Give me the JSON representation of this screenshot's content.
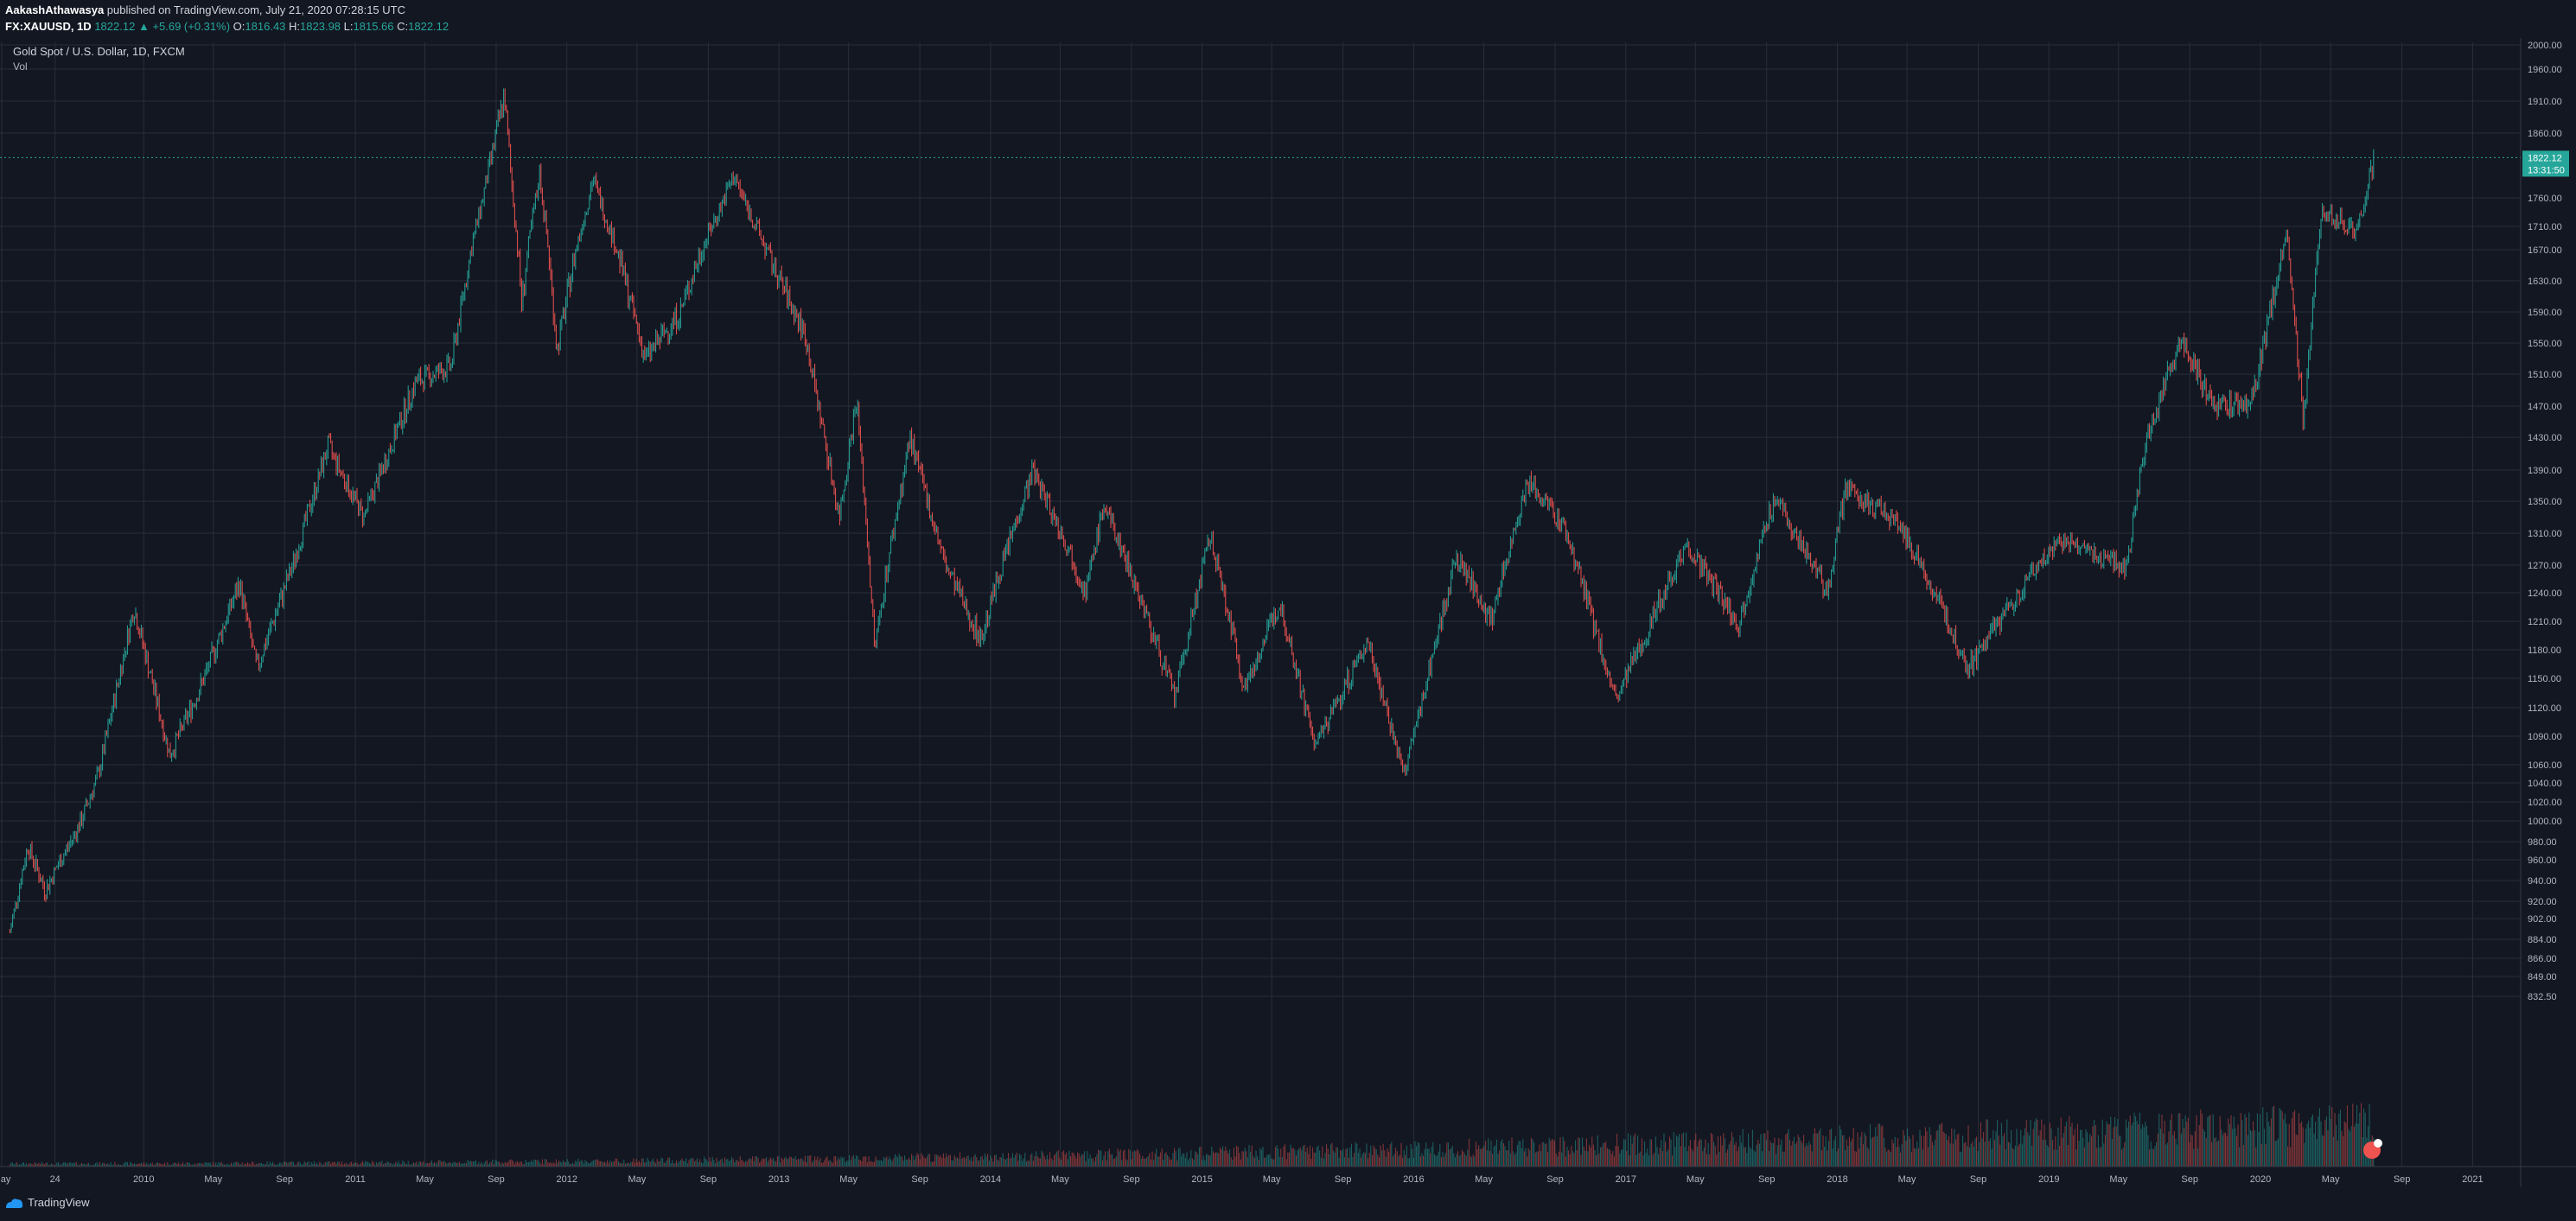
{
  "header": {
    "user": "AakashAthawasya",
    "published_text": "published on TradingView.com, July 21, 2020 07:28:15 UTC",
    "symbol": "FX:XAUUSD, 1D",
    "last_price": "1822.12",
    "change": "▲ +5.69 (+0.31%)",
    "o_label": "O:",
    "o_value": "1816.43",
    "h_label": "H:",
    "h_value": "1823.98",
    "l_label": "L:",
    "l_value": "1815.66",
    "c_label": "C:",
    "c_value": "1822.12"
  },
  "legend": {
    "title": "Gold Spot / U.S. Dollar, 1D, FXCM",
    "volume": "Vol"
  },
  "price_tag": {
    "price": "1822.12",
    "countdown": "13:31:50"
  },
  "footer": {
    "brand": "TradingView"
  },
  "colors": {
    "background": "#131722",
    "grid": "#2a2e39",
    "up": "#26a69a",
    "down": "#ef5350",
    "axis_text": "#b2b5be"
  },
  "chart_data": {
    "type": "candlestick",
    "title": "Gold Spot / U.S. Dollar, 1D, FXCM",
    "y_ticks": [
      "2000.00",
      "1960.00",
      "1910.00",
      "1860.00",
      "1760.00",
      "1710.00",
      "1670.00",
      "1630.00",
      "1590.00",
      "1550.00",
      "1510.00",
      "1470.00",
      "1430.00",
      "1390.00",
      "1350.00",
      "1310.00",
      "1270.00",
      "1240.00",
      "1210.00",
      "1180.00",
      "1150.00",
      "1120.00",
      "1090.00",
      "1060.00",
      "1040.00",
      "1020.00",
      "1000.00",
      "980.00",
      "960.00",
      "940.00",
      "920.00",
      "902.00",
      "884.00",
      "866.00",
      "849.00",
      "832.50"
    ],
    "x_ticks": [
      "May",
      "24",
      "2010",
      "May",
      "Sep",
      "2011",
      "May",
      "Sep",
      "2012",
      "May",
      "Sep",
      "2013",
      "May",
      "Sep",
      "2014",
      "May",
      "Sep",
      "2015",
      "May",
      "Sep",
      "2016",
      "May",
      "Sep",
      "2017",
      "May",
      "Sep",
      "2018",
      "May",
      "Sep",
      "2019",
      "May",
      "Sep",
      "2020",
      "May",
      "Sep",
      "2021"
    ],
    "x_tick_dates": [
      "2009-05",
      "2009-08",
      "2010-01",
      "2010-05",
      "2010-09",
      "2011-01",
      "2011-05",
      "2011-09",
      "2012-01",
      "2012-05",
      "2012-09",
      "2013-01",
      "2013-05",
      "2013-09",
      "2014-01",
      "2014-05",
      "2014-09",
      "2015-01",
      "2015-05",
      "2015-09",
      "2016-01",
      "2016-05",
      "2016-09",
      "2017-01",
      "2017-05",
      "2017-09",
      "2018-01",
      "2018-05",
      "2018-09",
      "2019-01",
      "2019-05",
      "2019-09",
      "2020-01",
      "2020-05",
      "2020-09",
      "2021-01"
    ],
    "price_path": [
      [
        "2009-05",
        890
      ],
      [
        "2009-06",
        975
      ],
      [
        "2009-07",
        930
      ],
      [
        "2009-09",
        1000
      ],
      [
        "2009-10",
        1050
      ],
      [
        "2009-12",
        1225
      ],
      [
        "2010-02",
        1070
      ],
      [
        "2010-04",
        1150
      ],
      [
        "2010-06",
        1250
      ],
      [
        "2010-07",
        1160
      ],
      [
        "2010-09",
        1270
      ],
      [
        "2010-11",
        1420
      ],
      [
        "2011-01",
        1330
      ],
      [
        "2011-04",
        1500
      ],
      [
        "2011-06",
        1520
      ],
      [
        "2011-09",
        1920
      ],
      [
        "2011-10",
        1600
      ],
      [
        "2011-11",
        1800
      ],
      [
        "2011-12",
        1540
      ],
      [
        "2012-02",
        1790
      ],
      [
        "2012-05",
        1530
      ],
      [
        "2012-07",
        1590
      ],
      [
        "2012-10",
        1795
      ],
      [
        "2012-12",
        1660
      ],
      [
        "2013-02",
        1560
      ],
      [
        "2013-04",
        1330
      ],
      [
        "2013-05",
        1480
      ],
      [
        "2013-06",
        1180
      ],
      [
        "2013-08",
        1430
      ],
      [
        "2013-10",
        1270
      ],
      [
        "2013-12",
        1190
      ],
      [
        "2014-03",
        1390
      ],
      [
        "2014-06",
        1240
      ],
      [
        "2014-07",
        1345
      ],
      [
        "2014-11",
        1130
      ],
      [
        "2015-01",
        1305
      ],
      [
        "2015-03",
        1140
      ],
      [
        "2015-05",
        1230
      ],
      [
        "2015-07",
        1080
      ],
      [
        "2015-10",
        1190
      ],
      [
        "2015-12",
        1048
      ],
      [
        "2016-03",
        1280
      ],
      [
        "2016-05",
        1210
      ],
      [
        "2016-07",
        1375
      ],
      [
        "2016-09",
        1320
      ],
      [
        "2016-12",
        1125
      ],
      [
        "2017-04",
        1295
      ],
      [
        "2017-07",
        1205
      ],
      [
        "2017-09",
        1355
      ],
      [
        "2017-12",
        1240
      ],
      [
        "2018-01",
        1365
      ],
      [
        "2018-04",
        1325
      ],
      [
        "2018-08",
        1160
      ],
      [
        "2019-01",
        1300
      ],
      [
        "2019-05",
        1270
      ],
      [
        "2019-06",
        1420
      ],
      [
        "2019-08",
        1555
      ],
      [
        "2019-10",
        1470
      ],
      [
        "2019-12",
        1470
      ],
      [
        "2020-02",
        1690
      ],
      [
        "2020-03",
        1450
      ],
      [
        "2020-04",
        1740
      ],
      [
        "2020-06",
        1700
      ],
      [
        "2020-07",
        1822.12
      ]
    ]
  }
}
